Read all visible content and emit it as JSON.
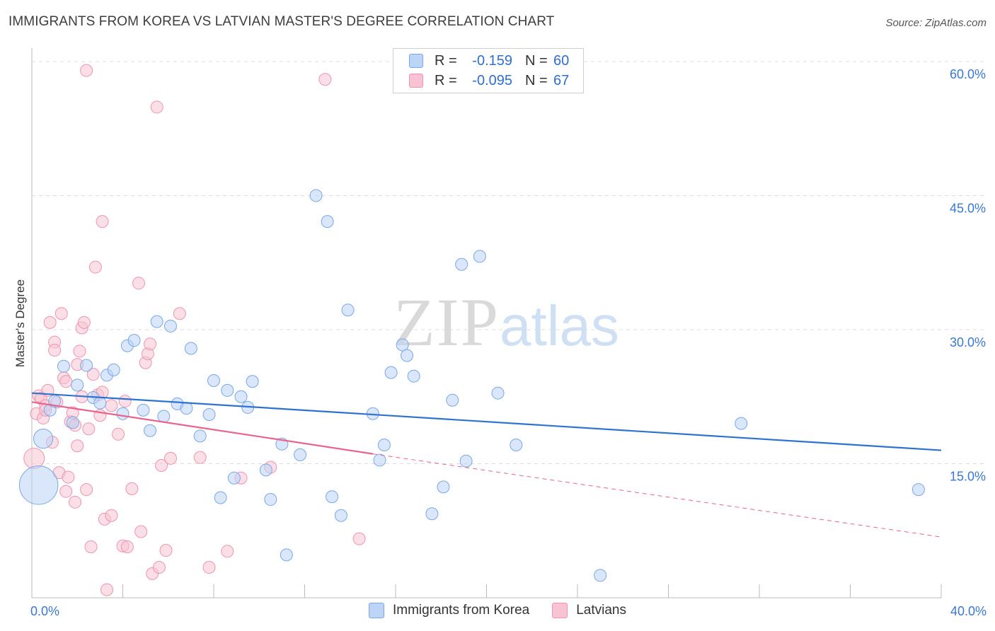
{
  "header": {
    "title": "IMMIGRANTS FROM KOREA VS LATVIAN MASTER'S DEGREE CORRELATION CHART",
    "source": "Source: ZipAtlas.com"
  },
  "watermark": {
    "zip": "ZIP",
    "atlas": "atlas"
  },
  "legend": {
    "r_label": "R =",
    "n_label": "N =",
    "rows": [
      {
        "r": "-0.159",
        "n": "60"
      },
      {
        "r": "-0.095",
        "n": "67"
      }
    ]
  },
  "colors": {
    "korea_fill": "#bcd4f5",
    "korea_stroke": "#7aa7e6",
    "korea_line": "#2e72d2",
    "latvian_fill": "#f8c4d4",
    "latvian_stroke": "#ef93b0",
    "latvian_line": "#e8638d",
    "grid": "#dcdcdc",
    "tick_label": "#3a78d6"
  },
  "chart_data": {
    "type": "scatter",
    "title": "IMMIGRANTS FROM KOREA VS LATVIAN MASTER'S DEGREE CORRELATION CHART",
    "xlabel": "",
    "ylabel": "Master's Degree",
    "xlim": [
      0,
      40
    ],
    "ylim": [
      0,
      60
    ],
    "x_tick_labels": [
      "0.0%",
      "40.0%"
    ],
    "y_ticks": [
      15,
      30,
      45,
      60
    ],
    "y_tick_labels": [
      "15.0%",
      "30.0%",
      "45.0%",
      "60.0%"
    ],
    "grid": "horizontal dashed",
    "legend_position": "top-center",
    "series": [
      {
        "name": "Immigrants from Korea",
        "r": -0.159,
        "n": 60,
        "trend": {
          "x": [
            0,
            40
          ],
          "y": [
            22.9,
            16.5
          ]
        },
        "points": [
          {
            "x": 0.3,
            "y": 12.6,
            "s": 3.2
          },
          {
            "x": 0.5,
            "y": 17.8,
            "s": 1.6
          },
          {
            "x": 0.8,
            "y": 21.0
          },
          {
            "x": 1.0,
            "y": 22.0
          },
          {
            "x": 1.4,
            "y": 25.9
          },
          {
            "x": 1.8,
            "y": 19.6
          },
          {
            "x": 2.0,
            "y": 23.8
          },
          {
            "x": 2.4,
            "y": 26.0
          },
          {
            "x": 2.7,
            "y": 22.4
          },
          {
            "x": 3.0,
            "y": 21.8
          },
          {
            "x": 3.3,
            "y": 24.9
          },
          {
            "x": 3.6,
            "y": 25.5
          },
          {
            "x": 4.0,
            "y": 20.6
          },
          {
            "x": 4.2,
            "y": 28.2
          },
          {
            "x": 4.5,
            "y": 28.8
          },
          {
            "x": 4.9,
            "y": 21.0
          },
          {
            "x": 5.2,
            "y": 18.7
          },
          {
            "x": 5.5,
            "y": 30.9
          },
          {
            "x": 5.8,
            "y": 20.3
          },
          {
            "x": 6.1,
            "y": 30.4
          },
          {
            "x": 6.4,
            "y": 21.7
          },
          {
            "x": 6.8,
            "y": 21.2
          },
          {
            "x": 7.0,
            "y": 27.9
          },
          {
            "x": 7.4,
            "y": 18.1
          },
          {
            "x": 7.8,
            "y": 20.5
          },
          {
            "x": 8.0,
            "y": 24.3
          },
          {
            "x": 8.3,
            "y": 11.2
          },
          {
            "x": 8.6,
            "y": 23.2
          },
          {
            "x": 8.9,
            "y": 13.4
          },
          {
            "x": 9.2,
            "y": 22.5
          },
          {
            "x": 9.5,
            "y": 21.3
          },
          {
            "x": 9.7,
            "y": 24.2
          },
          {
            "x": 10.3,
            "y": 14.3
          },
          {
            "x": 10.5,
            "y": 11.0
          },
          {
            "x": 11.0,
            "y": 17.2
          },
          {
            "x": 11.2,
            "y": 4.8
          },
          {
            "x": 11.8,
            "y": 16.0
          },
          {
            "x": 12.5,
            "y": 45.0
          },
          {
            "x": 13.0,
            "y": 42.1
          },
          {
            "x": 13.2,
            "y": 11.3
          },
          {
            "x": 13.6,
            "y": 9.2
          },
          {
            "x": 13.9,
            "y": 32.2
          },
          {
            "x": 15.0,
            "y": 20.6
          },
          {
            "x": 15.3,
            "y": 15.4
          },
          {
            "x": 15.5,
            "y": 17.1
          },
          {
            "x": 15.8,
            "y": 25.2
          },
          {
            "x": 16.3,
            "y": 28.3
          },
          {
            "x": 16.5,
            "y": 27.1
          },
          {
            "x": 16.8,
            "y": 24.8
          },
          {
            "x": 17.6,
            "y": 9.4
          },
          {
            "x": 18.1,
            "y": 12.4
          },
          {
            "x": 18.5,
            "y": 22.1
          },
          {
            "x": 18.9,
            "y": 37.3
          },
          {
            "x": 19.1,
            "y": 15.3
          },
          {
            "x": 19.7,
            "y": 38.2
          },
          {
            "x": 20.5,
            "y": 22.9
          },
          {
            "x": 21.3,
            "y": 17.1
          },
          {
            "x": 25.0,
            "y": 2.5
          },
          {
            "x": 31.2,
            "y": 19.5
          },
          {
            "x": 39.0,
            "y": 12.1
          }
        ]
      },
      {
        "name": "Latvians",
        "r": -0.095,
        "n": 67,
        "trend": {
          "x": [
            0,
            15
          ],
          "y": [
            21.9,
            16.1
          ]
        },
        "trend_extension": {
          "x": [
            15,
            40
          ],
          "y": [
            16.1,
            6.8
          ]
        },
        "points": [
          {
            "x": 0.1,
            "y": 15.6,
            "s": 1.7
          },
          {
            "x": 0.2,
            "y": 20.6
          },
          {
            "x": 0.3,
            "y": 22.6
          },
          {
            "x": 0.4,
            "y": 22.3
          },
          {
            "x": 0.5,
            "y": 20.1
          },
          {
            "x": 0.6,
            "y": 21.5
          },
          {
            "x": 0.7,
            "y": 23.2
          },
          {
            "x": 0.8,
            "y": 30.8
          },
          {
            "x": 0.9,
            "y": 17.4
          },
          {
            "x": 1.0,
            "y": 28.6
          },
          {
            "x": 1.0,
            "y": 27.7
          },
          {
            "x": 1.2,
            "y": 14.0
          },
          {
            "x": 1.3,
            "y": 31.8
          },
          {
            "x": 1.4,
            "y": 24.6
          },
          {
            "x": 1.5,
            "y": 24.2
          },
          {
            "x": 1.5,
            "y": 11.9
          },
          {
            "x": 1.6,
            "y": 13.5
          },
          {
            "x": 1.7,
            "y": 19.7
          },
          {
            "x": 1.8,
            "y": 20.7
          },
          {
            "x": 1.9,
            "y": 19.3
          },
          {
            "x": 1.9,
            "y": 10.7
          },
          {
            "x": 2.0,
            "y": 26.1
          },
          {
            "x": 2.1,
            "y": 27.6
          },
          {
            "x": 2.2,
            "y": 22.5
          },
          {
            "x": 2.2,
            "y": 30.2
          },
          {
            "x": 2.3,
            "y": 30.8
          },
          {
            "x": 2.4,
            "y": 12.1
          },
          {
            "x": 2.4,
            "y": 59.0
          },
          {
            "x": 2.5,
            "y": 18.9
          },
          {
            "x": 2.6,
            "y": 5.7
          },
          {
            "x": 2.7,
            "y": 25.0
          },
          {
            "x": 2.8,
            "y": 37.0
          },
          {
            "x": 2.9,
            "y": 22.7
          },
          {
            "x": 3.0,
            "y": 20.4
          },
          {
            "x": 3.1,
            "y": 23.0
          },
          {
            "x": 3.1,
            "y": 42.1
          },
          {
            "x": 3.2,
            "y": 8.8
          },
          {
            "x": 3.3,
            "y": 0.9
          },
          {
            "x": 3.5,
            "y": 9.2
          },
          {
            "x": 3.8,
            "y": 18.3
          },
          {
            "x": 4.0,
            "y": 5.8
          },
          {
            "x": 4.1,
            "y": 22.0
          },
          {
            "x": 4.2,
            "y": 5.7
          },
          {
            "x": 4.4,
            "y": 12.2
          },
          {
            "x": 4.7,
            "y": 35.2
          },
          {
            "x": 4.8,
            "y": 7.4
          },
          {
            "x": 5.0,
            "y": 26.3
          },
          {
            "x": 5.1,
            "y": 27.3
          },
          {
            "x": 5.2,
            "y": 28.4
          },
          {
            "x": 5.3,
            "y": 2.7
          },
          {
            "x": 5.5,
            "y": 54.9
          },
          {
            "x": 5.6,
            "y": 3.4
          },
          {
            "x": 5.7,
            "y": 14.8
          },
          {
            "x": 5.9,
            "y": 5.3
          },
          {
            "x": 6.1,
            "y": 15.6
          },
          {
            "x": 6.5,
            "y": 31.8
          },
          {
            "x": 7.4,
            "y": 15.7
          },
          {
            "x": 7.8,
            "y": 3.4
          },
          {
            "x": 8.6,
            "y": 5.2
          },
          {
            "x": 9.2,
            "y": 13.4
          },
          {
            "x": 10.5,
            "y": 14.6
          },
          {
            "x": 12.9,
            "y": 58.0
          },
          {
            "x": 14.4,
            "y": 6.6
          },
          {
            "x": 0.6,
            "y": 21.0
          },
          {
            "x": 1.1,
            "y": 21.9
          },
          {
            "x": 2.0,
            "y": 17.0
          },
          {
            "x": 3.5,
            "y": 21.5
          }
        ]
      }
    ]
  }
}
